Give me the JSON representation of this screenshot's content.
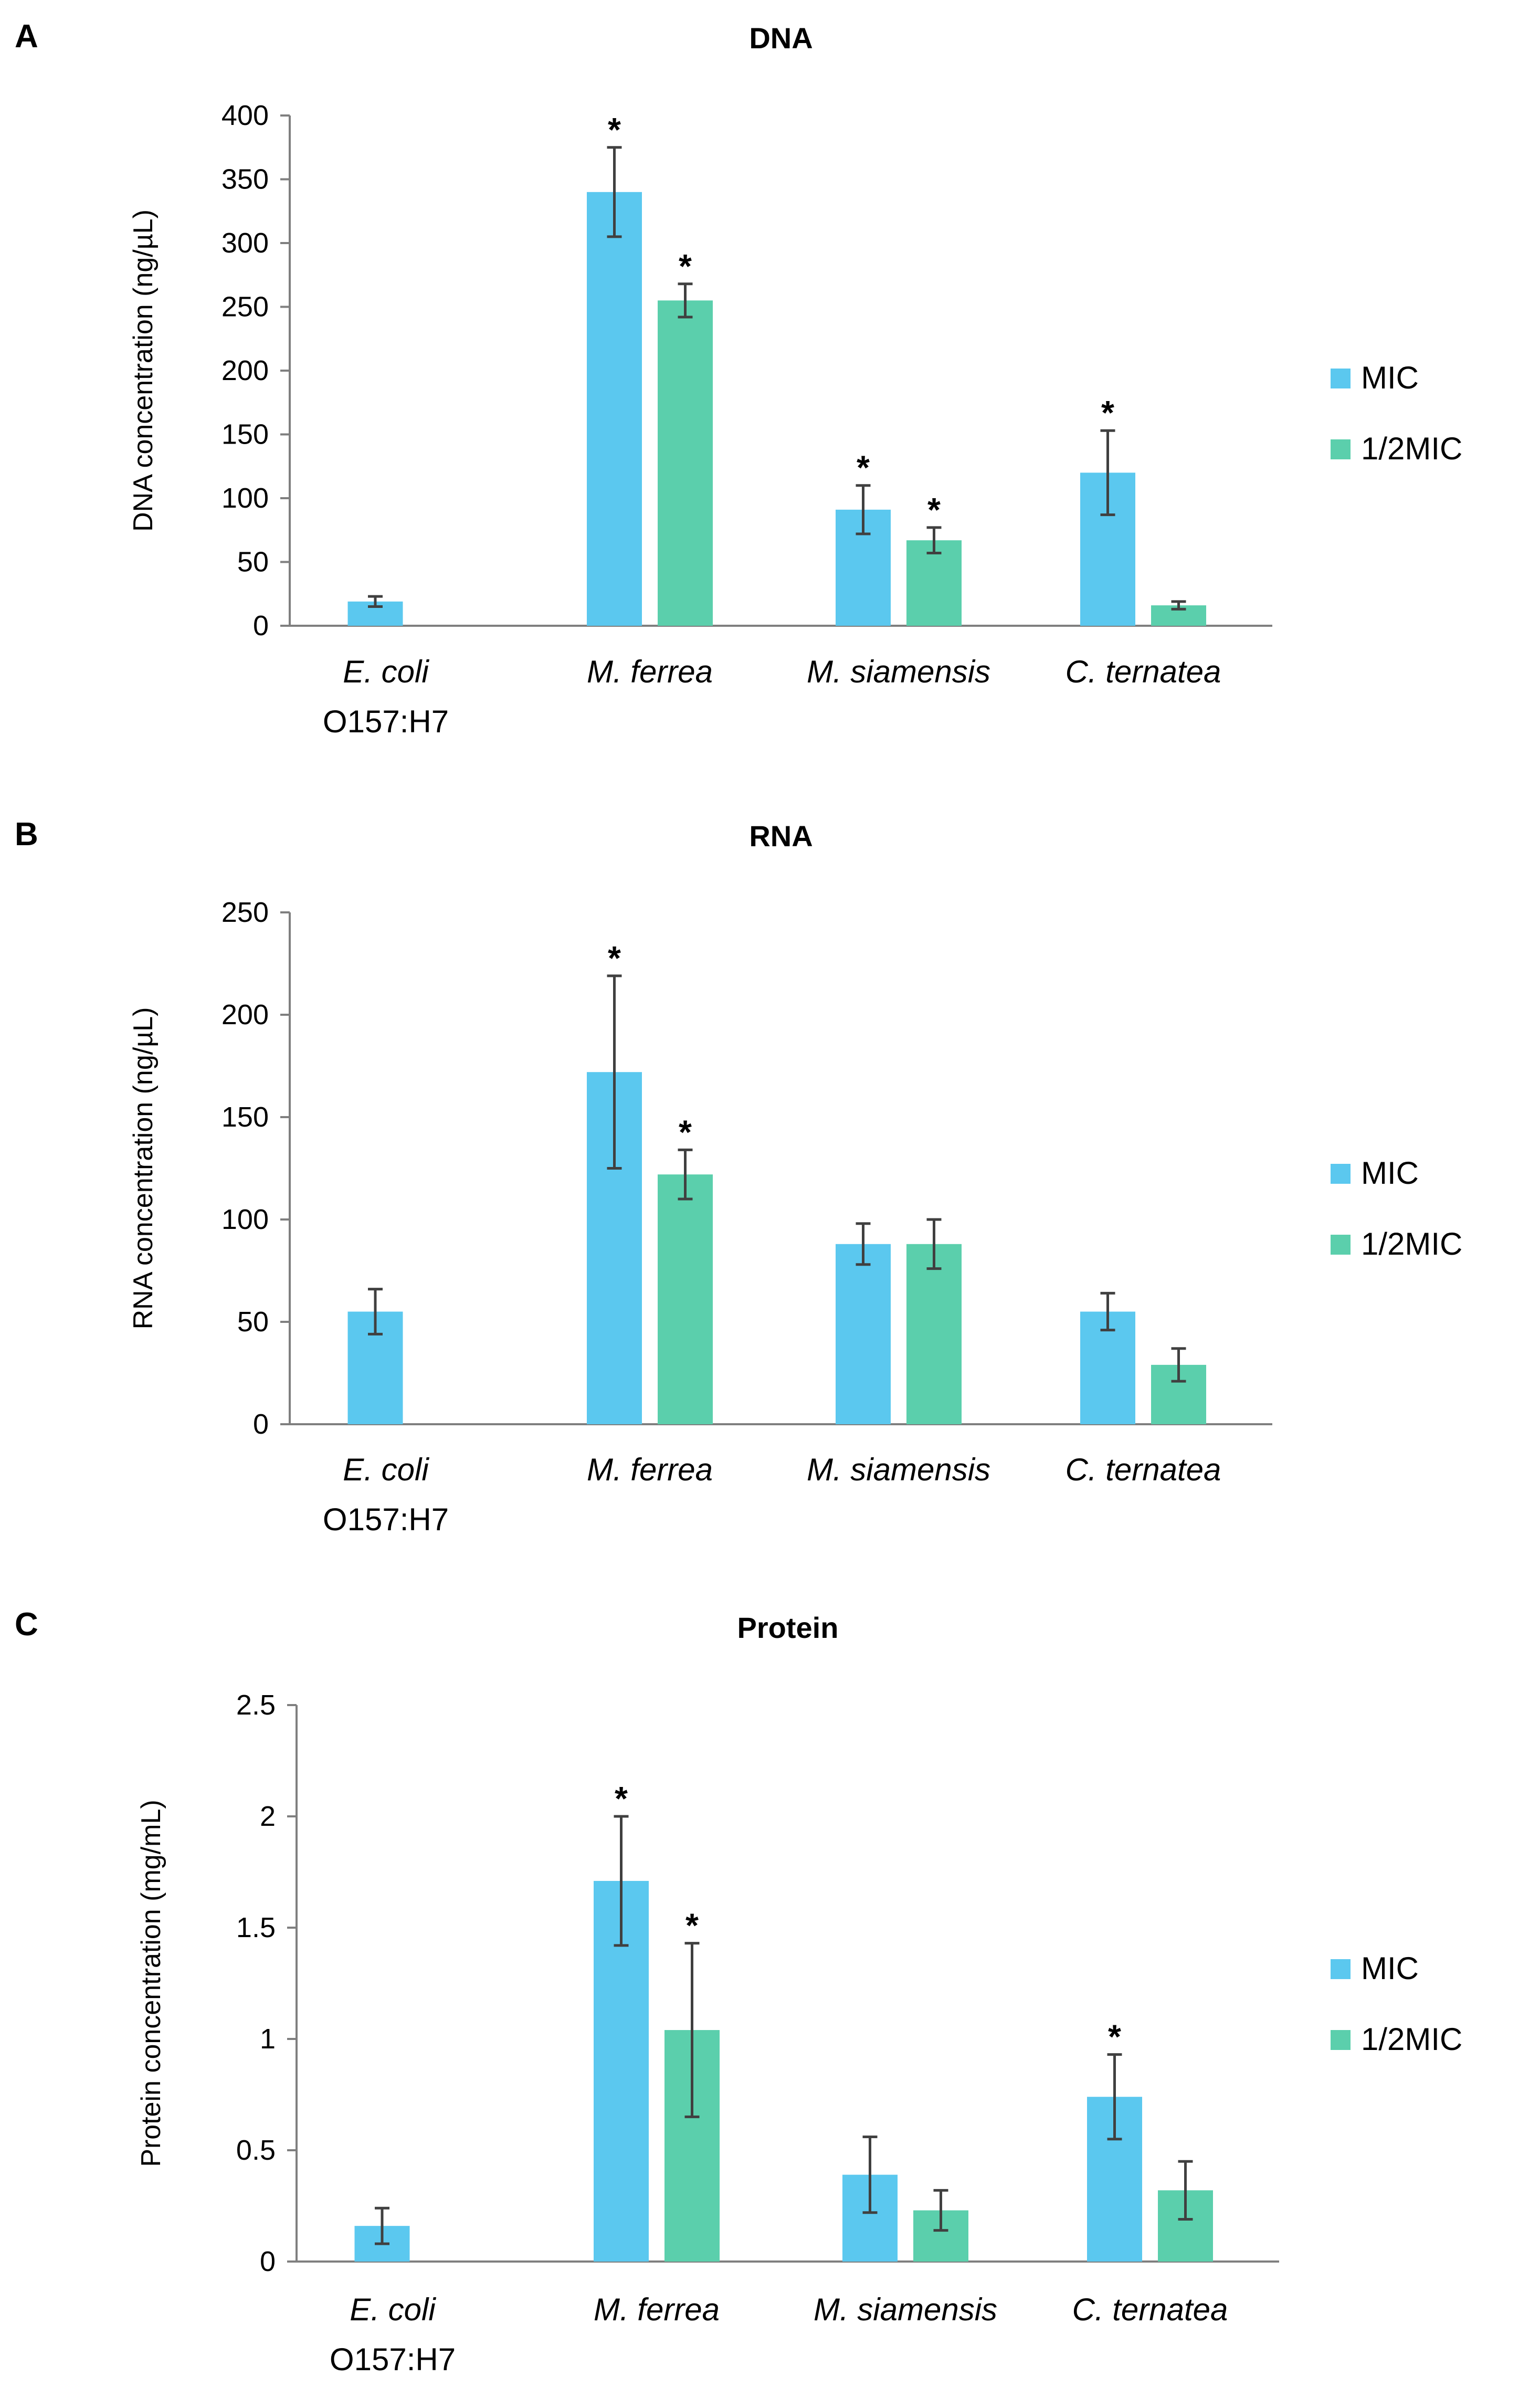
{
  "colors": {
    "mic": "#5bc8ef",
    "half_mic": "#5bcfac",
    "axis": "#7f7f7f",
    "error": "#404040"
  },
  "legend": {
    "mic": "MIC",
    "half_mic": "1/2MIC"
  },
  "categories": [
    {
      "line1": "E. coli",
      "line2": "O157:H7"
    },
    {
      "line1": "M. ferrea",
      "line2": ""
    },
    {
      "line1": "M. siamensis",
      "line2": ""
    },
    {
      "line1": "C. ternatea",
      "line2": ""
    }
  ],
  "chart_data": [
    {
      "panel": "A",
      "type": "bar",
      "title": "DNA",
      "ylabel": "DNA concentration (ng/µL)",
      "ylim": [
        0,
        400
      ],
      "yticks": [
        0,
        50,
        100,
        150,
        200,
        250,
        300,
        350,
        400
      ],
      "ytick_labels": [
        "0",
        "50",
        "100",
        "150",
        "200",
        "250",
        "300",
        "350",
        "400"
      ],
      "categories": [
        "E. coli O157:H7",
        "M. ferrea",
        "M. siamensis",
        "C. ternatea"
      ],
      "series": [
        {
          "name": "MIC",
          "values": [
            19,
            340,
            91,
            120
          ],
          "errors": [
            4,
            35,
            19,
            33
          ],
          "significant": [
            false,
            true,
            true,
            true
          ]
        },
        {
          "name": "1/2MIC",
          "values": [
            null,
            255,
            67,
            16
          ],
          "errors": [
            null,
            13,
            10,
            3
          ],
          "significant": [
            false,
            true,
            true,
            false
          ]
        }
      ]
    },
    {
      "panel": "B",
      "type": "bar",
      "title": "RNA",
      "ylabel": "RNA concentration (ng/µL)",
      "ylim": [
        0,
        250
      ],
      "yticks": [
        0,
        50,
        100,
        150,
        200,
        250
      ],
      "ytick_labels": [
        "0",
        "50",
        "100",
        "150",
        "200",
        "250"
      ],
      "categories": [
        "E. coli O157:H7",
        "M. ferrea",
        "M. siamensis",
        "C. ternatea"
      ],
      "series": [
        {
          "name": "MIC",
          "values": [
            55,
            172,
            88,
            55
          ],
          "errors": [
            11,
            47,
            10,
            9
          ],
          "significant": [
            false,
            true,
            false,
            false
          ]
        },
        {
          "name": "1/2MIC",
          "values": [
            null,
            122,
            88,
            29
          ],
          "errors": [
            null,
            12,
            12,
            8
          ],
          "significant": [
            false,
            true,
            false,
            false
          ]
        }
      ]
    },
    {
      "panel": "C",
      "type": "bar",
      "title": "Protein",
      "ylabel": "Protein concentration (mg/mL)",
      "ylim": [
        0,
        2.5
      ],
      "yticks": [
        0,
        0.5,
        1,
        1.5,
        2,
        2.5
      ],
      "ytick_labels": [
        "0",
        "0.5",
        "1",
        "1.5",
        "2",
        "2.5"
      ],
      "categories": [
        "E. coli O157:H7",
        "M. ferrea",
        "M. siamensis",
        "C. ternatea"
      ],
      "series": [
        {
          "name": "MIC",
          "values": [
            0.16,
            1.71,
            0.39,
            0.74
          ],
          "errors": [
            0.08,
            0.29,
            0.17,
            0.19
          ],
          "significant": [
            false,
            true,
            false,
            true
          ]
        },
        {
          "name": "1/2MIC",
          "values": [
            null,
            1.04,
            0.23,
            0.32
          ],
          "errors": [
            null,
            0.39,
            0.09,
            0.13
          ],
          "significant": [
            false,
            true,
            false,
            false
          ]
        }
      ]
    }
  ]
}
